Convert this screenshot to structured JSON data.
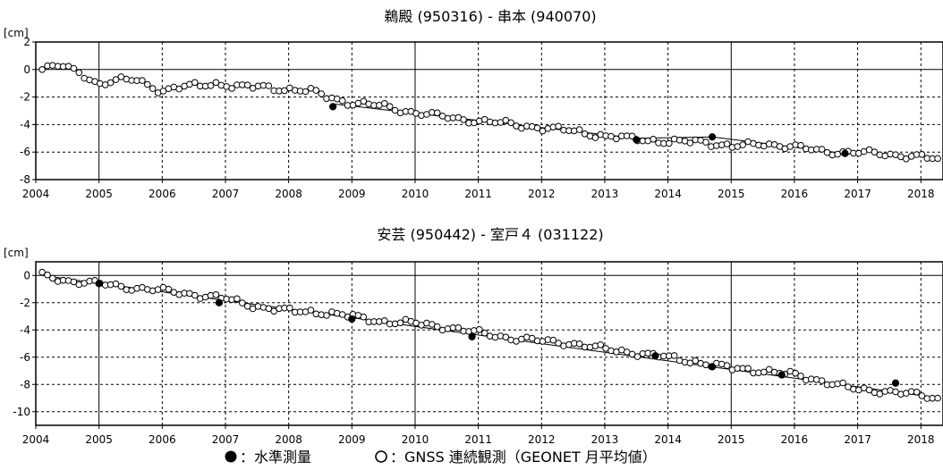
{
  "legend": {
    "leveling_label": "：水準測量",
    "gnss_label": "：GNSS 連続観測（GEONET 月平均値）"
  },
  "colors": {
    "axis": "#000000",
    "grid": "#000000",
    "marker_stroke": "#000000",
    "marker_fill_leveling": "#000000",
    "marker_fill_gnss": "#ffffff"
  },
  "chart_data": [
    {
      "type": "scatter",
      "title": "鵜殿 (950316) - 串本 (940070)",
      "ylabel": "[cm]",
      "xlabel": "",
      "xlim": [
        2004.0,
        2018.35
      ],
      "ylim": [
        -8,
        2
      ],
      "xticks": [
        2004,
        2005,
        2006,
        2007,
        2008,
        2009,
        2010,
        2011,
        2012,
        2013,
        2014,
        2015,
        2016,
        2017,
        2018
      ],
      "yticks": [
        2,
        0,
        -2,
        -4,
        -6,
        -8
      ],
      "grid": true,
      "series": [
        {
          "name": "水準測量",
          "marker": "filled-circle",
          "points": [
            [
              2008.7,
              -2.7
            ],
            [
              2013.5,
              -5.1
            ],
            [
              2014.7,
              -4.9
            ],
            [
              2016.8,
              -6.1
            ]
          ]
        },
        {
          "name": "GNSS 連続観測（GEONET 月平均値）",
          "marker": "open-circle",
          "anchors": [
            [
              2004.1,
              0.0
            ],
            [
              2004.4,
              0.3
            ],
            [
              2004.7,
              -0.2
            ],
            [
              2005.0,
              -1.1
            ],
            [
              2005.3,
              -0.8
            ],
            [
              2005.6,
              -0.7
            ],
            [
              2006.0,
              -1.6
            ],
            [
              2006.4,
              -1.2
            ],
            [
              2006.8,
              -1.0
            ],
            [
              2007.2,
              -1.3
            ],
            [
              2007.6,
              -1.2
            ],
            [
              2008.0,
              -1.5
            ],
            [
              2008.4,
              -1.6
            ],
            [
              2008.8,
              -2.2
            ],
            [
              2009.0,
              -2.5
            ],
            [
              2009.5,
              -2.6
            ],
            [
              2010.0,
              -3.2
            ],
            [
              2010.5,
              -3.4
            ],
            [
              2011.0,
              -3.8
            ],
            [
              2011.5,
              -3.9
            ],
            [
              2012.0,
              -4.3
            ],
            [
              2012.5,
              -4.4
            ],
            [
              2013.0,
              -4.9
            ],
            [
              2013.5,
              -5.0
            ],
            [
              2014.0,
              -5.3
            ],
            [
              2014.5,
              -5.2
            ],
            [
              2015.0,
              -5.6
            ],
            [
              2015.5,
              -5.4
            ],
            [
              2016.0,
              -5.6
            ],
            [
              2016.5,
              -6.0
            ],
            [
              2017.0,
              -6.0
            ],
            [
              2017.5,
              -6.2
            ],
            [
              2018.0,
              -6.3
            ],
            [
              2018.3,
              -6.6
            ]
          ]
        }
      ],
      "trend_lines": [
        [
          [
            2008.7,
            -2.5
          ],
          [
            2013.5,
            -5.0
          ]
        ],
        [
          [
            2013.5,
            -5.0
          ],
          [
            2014.7,
            -4.9
          ]
        ],
        [
          [
            2014.7,
            -4.9
          ],
          [
            2016.8,
            -6.1
          ]
        ]
      ]
    },
    {
      "type": "scatter",
      "title": "安芸 (950442) - 室戸４ (031122)",
      "ylabel": "[cm]",
      "xlabel": "",
      "xlim": [
        2004.0,
        2018.35
      ],
      "ylim": [
        -11,
        1
      ],
      "xticks": [
        2004,
        2005,
        2006,
        2007,
        2008,
        2009,
        2010,
        2011,
        2012,
        2013,
        2014,
        2015,
        2016,
        2017,
        2018
      ],
      "yticks": [
        0,
        -2,
        -4,
        -6,
        -8,
        -10
      ],
      "grid": true,
      "series": [
        {
          "name": "水準測量",
          "marker": "filled-circle",
          "points": [
            [
              2005.0,
              -0.6
            ],
            [
              2006.9,
              -2.0
            ],
            [
              2009.0,
              -3.2
            ],
            [
              2010.9,
              -4.5
            ],
            [
              2013.8,
              -5.9
            ],
            [
              2014.7,
              -6.7
            ],
            [
              2015.8,
              -7.3
            ],
            [
              2017.6,
              -7.9
            ]
          ]
        },
        {
          "name": "GNSS 連続観測（GEONET 月平均値）",
          "marker": "open-circle",
          "anchors": [
            [
              2004.1,
              0.0
            ],
            [
              2004.5,
              -0.4
            ],
            [
              2005.0,
              -0.6
            ],
            [
              2005.5,
              -0.9
            ],
            [
              2006.0,
              -1.1
            ],
            [
              2006.5,
              -1.4
            ],
            [
              2007.0,
              -1.7
            ],
            [
              2007.5,
              -2.3
            ],
            [
              2008.0,
              -2.6
            ],
            [
              2008.5,
              -2.7
            ],
            [
              2009.0,
              -3.0
            ],
            [
              2009.5,
              -3.4
            ],
            [
              2010.0,
              -3.5
            ],
            [
              2010.5,
              -3.8
            ],
            [
              2011.0,
              -4.2
            ],
            [
              2011.5,
              -4.6
            ],
            [
              2012.0,
              -4.8
            ],
            [
              2012.5,
              -5.0
            ],
            [
              2013.0,
              -5.4
            ],
            [
              2013.5,
              -5.7
            ],
            [
              2014.0,
              -6.0
            ],
            [
              2014.5,
              -6.4
            ],
            [
              2015.0,
              -6.8
            ],
            [
              2015.5,
              -7.0
            ],
            [
              2016.0,
              -7.3
            ],
            [
              2016.5,
              -7.8
            ],
            [
              2017.0,
              -8.4
            ],
            [
              2017.5,
              -8.5
            ],
            [
              2018.0,
              -8.8
            ],
            [
              2018.3,
              -9.1
            ]
          ]
        }
      ],
      "trend_lines": [
        [
          [
            2004.1,
            0.0
          ],
          [
            2018.3,
            -9.0
          ]
        ]
      ]
    }
  ]
}
